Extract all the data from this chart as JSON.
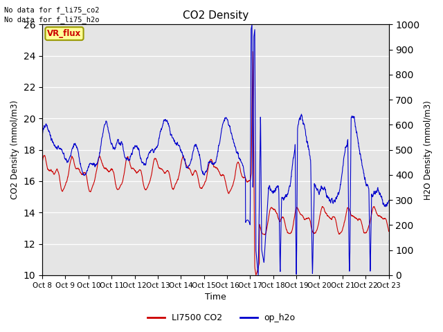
{
  "title": "CO2 Density",
  "xlabel": "Time",
  "ylabel_left": "CO2 Density (mmol/m3)",
  "ylabel_right": "H2O Density (mmol/m3)",
  "ylim_left": [
    10,
    26
  ],
  "ylim_right": [
    0,
    1000
  ],
  "yticks_left": [
    10,
    12,
    14,
    16,
    18,
    20,
    22,
    24,
    26
  ],
  "yticks_right": [
    0,
    100,
    200,
    300,
    400,
    500,
    600,
    700,
    800,
    900,
    1000
  ],
  "xtick_labels": [
    "Oct 8",
    "Oct 9",
    "Oct 10",
    "Oct 11",
    "Oct 12",
    "Oct 13",
    "Oct 14",
    "Oct 15",
    "Oct 16",
    "Oct 17",
    "Oct 18",
    "Oct 19",
    "Oct 20",
    "Oct 21",
    "Oct 22",
    "Oct 23"
  ],
  "text_no_data_1": "No data for f_li75_co2",
  "text_no_data_2": "No data for f_li75_h2o",
  "vr_flux_label": "VR_flux",
  "legend_entries": [
    "LI7500 CO2",
    "op_h2o"
  ],
  "red_color": "#cc0000",
  "blue_color": "#0000cc",
  "bg_color": "#e5e5e5",
  "grid_color": "#ffffff",
  "box_color": "#ffff99",
  "box_edge_color": "#999900"
}
